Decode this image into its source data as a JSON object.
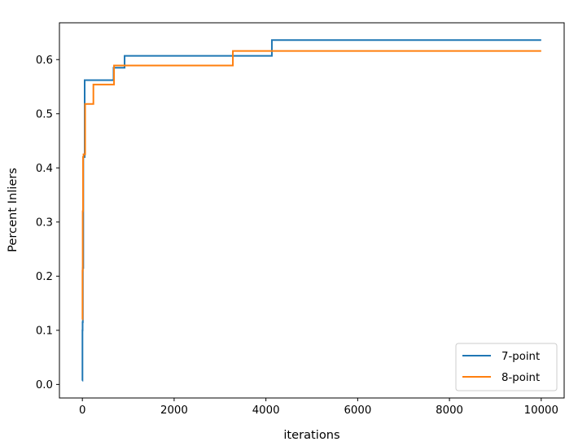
{
  "chart_data": {
    "type": "line",
    "xlabel": "iterations",
    "ylabel": "Percent Inliers",
    "xlim": [
      -500,
      10500
    ],
    "ylim": [
      -0.025,
      0.668
    ],
    "xticks": [
      0,
      2000,
      4000,
      6000,
      8000,
      10000
    ],
    "xtick_labels": [
      "0",
      "2000",
      "4000",
      "6000",
      "8000",
      "10000"
    ],
    "yticks": [
      0.0,
      0.1,
      0.2,
      0.3,
      0.4,
      0.5,
      0.6
    ],
    "ytick_labels": [
      "0.0",
      "0.1",
      "0.2",
      "0.3",
      "0.4",
      "0.5",
      "0.6"
    ],
    "grid": false,
    "legend_position": "lower-right",
    "series": [
      {
        "name": "7-point",
        "color": "#1f77b4",
        "step": true,
        "x": [
          0,
          2,
          5,
          10,
          20,
          50,
          680,
          920,
          4130,
          10000
        ],
        "y": [
          0.007,
          0.1,
          0.115,
          0.215,
          0.42,
          0.562,
          0.585,
          0.607,
          0.636,
          0.636
        ]
      },
      {
        "name": "8-point",
        "color": "#ff7f0e",
        "step": true,
        "x": [
          0,
          3,
          8,
          15,
          25,
          60,
          240,
          690,
          3280,
          10000
        ],
        "y": [
          0.12,
          0.21,
          0.32,
          0.42,
          0.425,
          0.518,
          0.554,
          0.589,
          0.616,
          0.616
        ]
      }
    ]
  }
}
